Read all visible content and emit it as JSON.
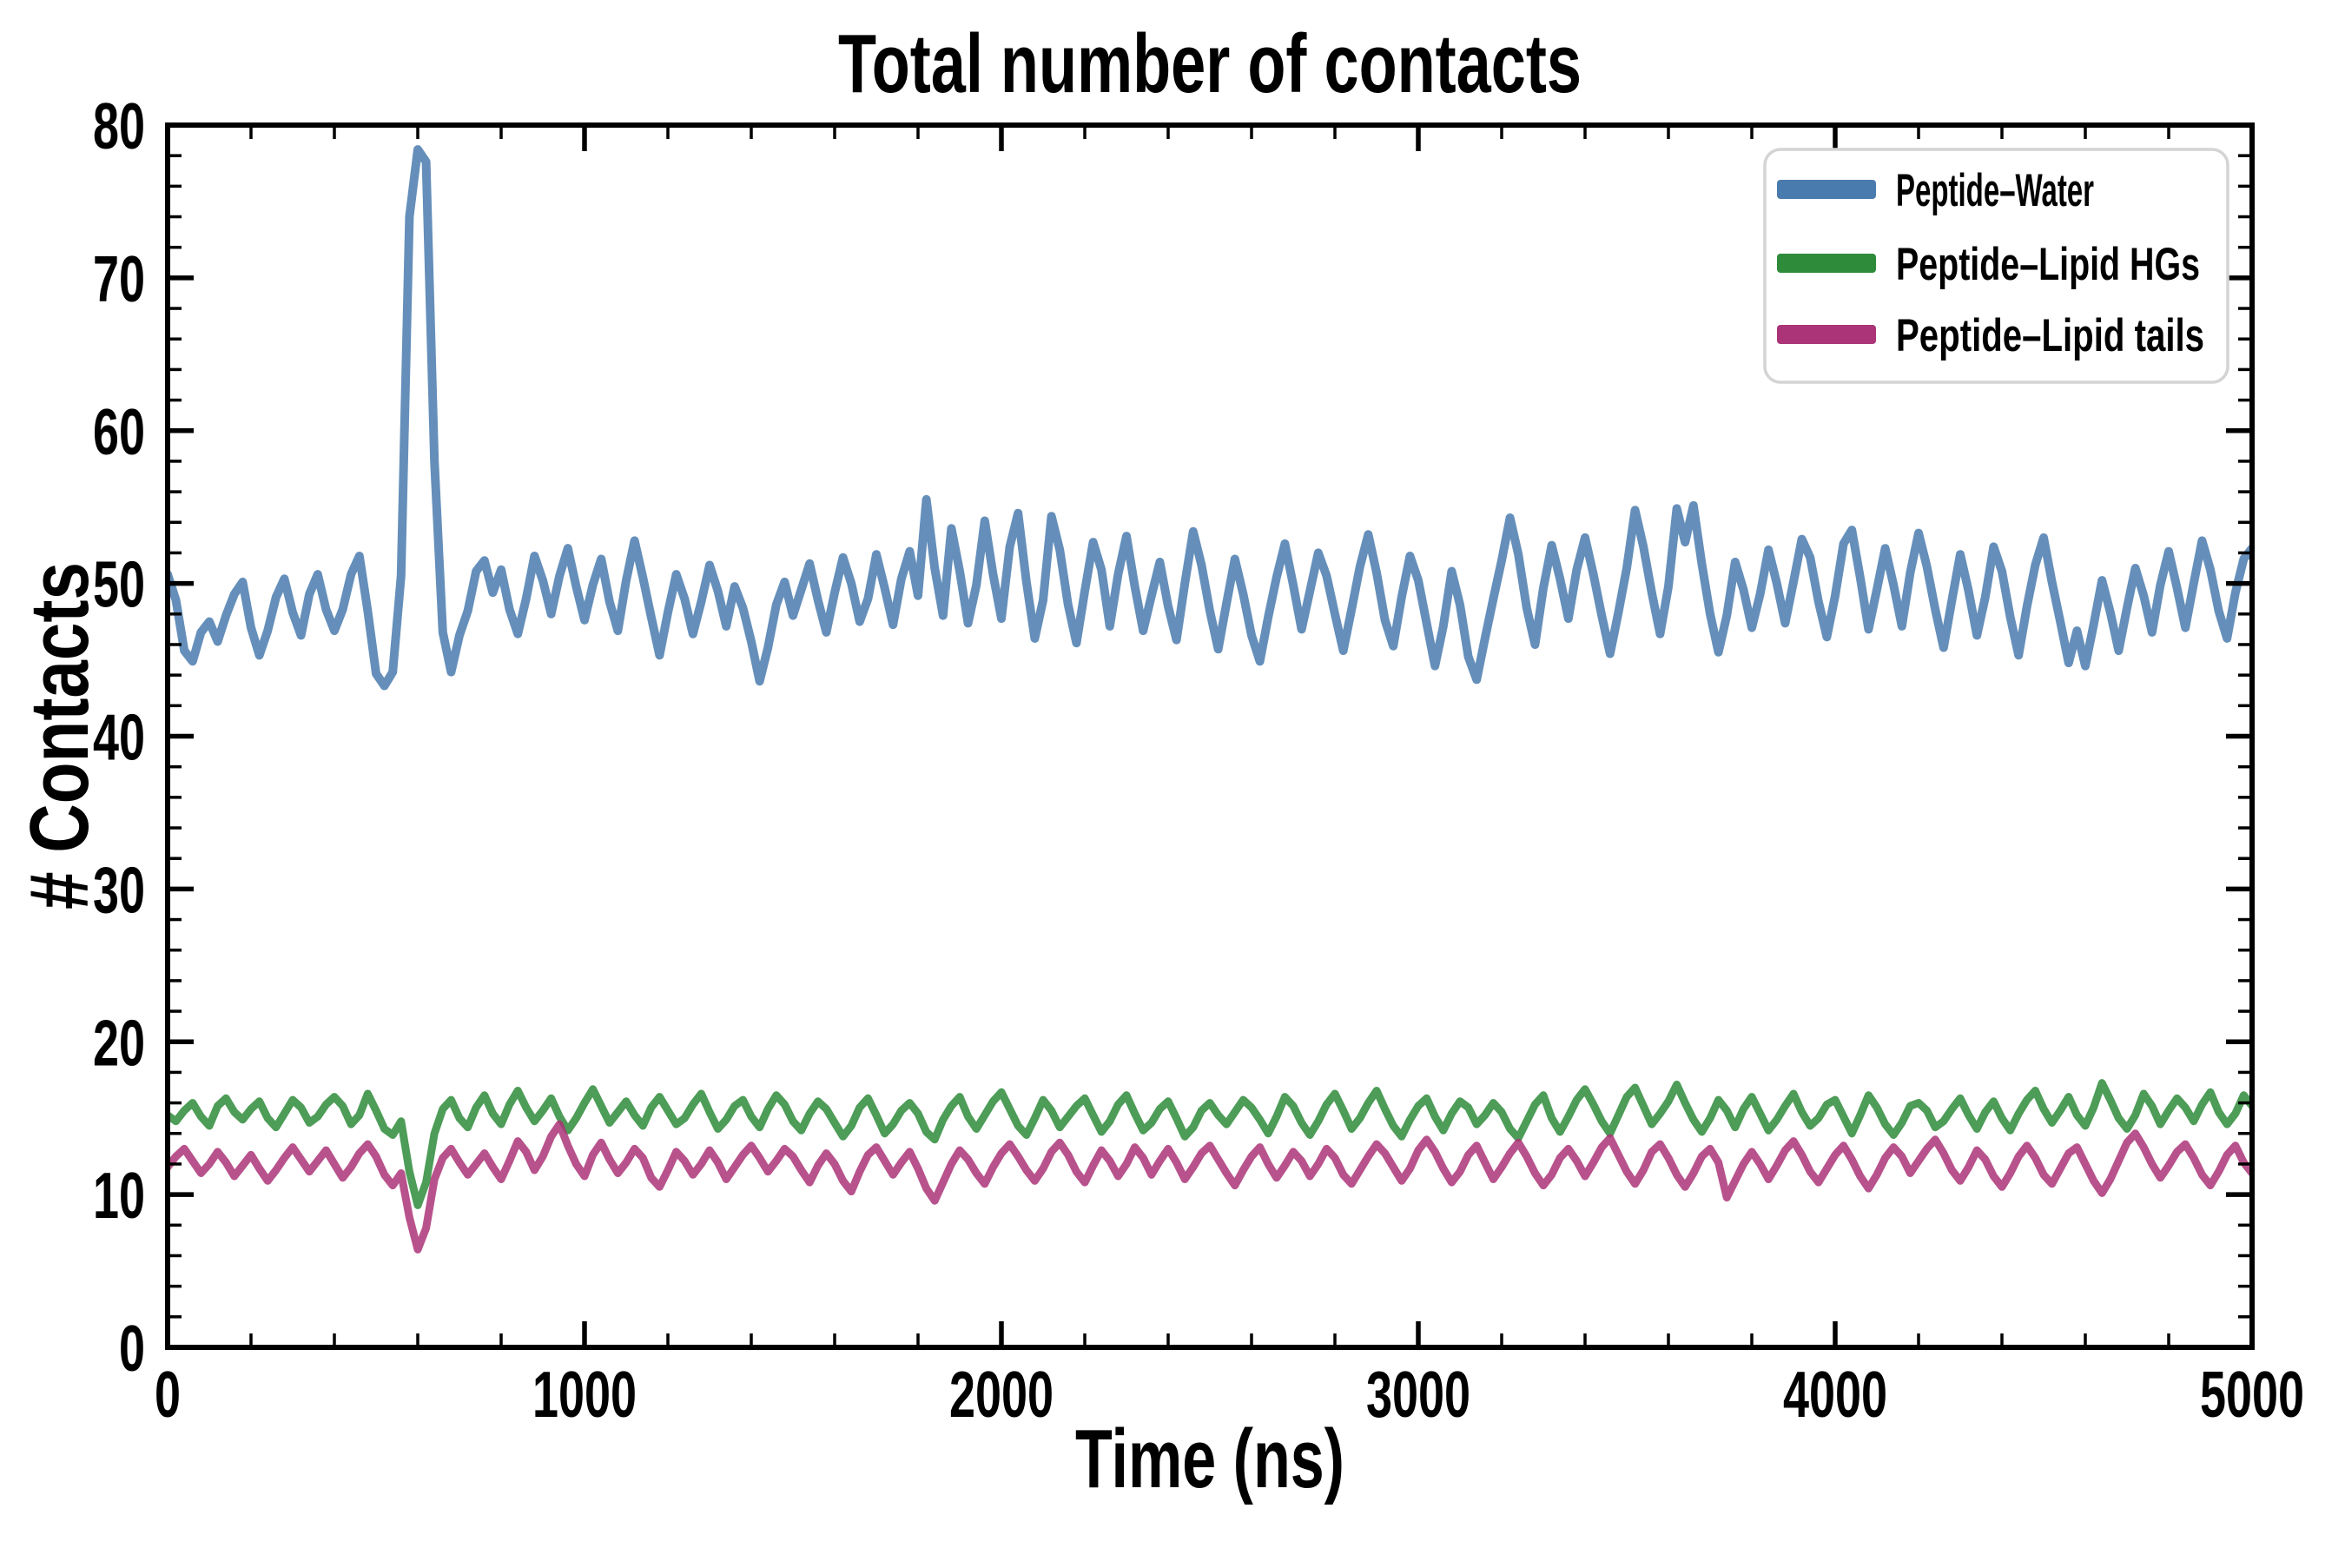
{
  "chart_data": {
    "type": "line",
    "title": "Total number of contacts",
    "xlabel": "Time (ns)",
    "ylabel": "# Contacts",
    "xlim": [
      0,
      5000
    ],
    "ylim": [
      0,
      80
    ],
    "x_major_ticks": [
      0,
      1000,
      2000,
      3000,
      4000,
      5000
    ],
    "x_minor_step": 200,
    "y_major_ticks": [
      0,
      10,
      20,
      30,
      40,
      50,
      60,
      70,
      80
    ],
    "y_minor_step": 2,
    "grid": false,
    "legend_position": "upper right",
    "background_color": "#ffffff",
    "axis_color": "#000000",
    "legend_border_color": "#d4d4d4",
    "line_alpha": 0.85,
    "x_start": 0,
    "x_step": 20,
    "series": [
      {
        "name": "Peptide–Water",
        "color": "#4a7bae",
        "linewidth": 10,
        "values": [
          50.6,
          48.9,
          45.6,
          44.9,
          46.8,
          47.5,
          46.2,
          47.9,
          49.3,
          50.1,
          47.1,
          45.3,
          46.9,
          49.1,
          50.3,
          48.1,
          46.6,
          49.3,
          50.6,
          48.3,
          46.9,
          48.3,
          50.6,
          51.8,
          48.2,
          44.1,
          43.3,
          44.2,
          50.5,
          74.0,
          78.4,
          77.6,
          58.0,
          46.8,
          44.2,
          46.6,
          48.2,
          50.8,
          51.5,
          49.4,
          50.9,
          48.3,
          46.7,
          49.0,
          51.8,
          50.2,
          48.0,
          50.5,
          52.3,
          49.8,
          47.6,
          49.9,
          51.6,
          48.8,
          46.9,
          50.2,
          52.8,
          50.4,
          47.8,
          45.3,
          48.1,
          50.6,
          49.0,
          46.7,
          48.8,
          51.2,
          49.5,
          47.2,
          49.8,
          48.4,
          46.2,
          43.6,
          45.8,
          48.6,
          50.1,
          47.9,
          49.6,
          51.3,
          48.9,
          46.8,
          49.4,
          51.7,
          50.0,
          47.5,
          49.0,
          51.9,
          49.7,
          47.3,
          50.3,
          52.1,
          49.2,
          55.5,
          51.0,
          47.9,
          53.6,
          50.8,
          47.4,
          49.9,
          54.1,
          50.6,
          47.7,
          52.4,
          54.6,
          50.1,
          46.4,
          48.9,
          54.4,
          52.2,
          48.6,
          46.1,
          49.5,
          52.7,
          50.9,
          47.2,
          50.6,
          53.1,
          49.8,
          46.9,
          49.2,
          51.4,
          48.5,
          46.3,
          50.0,
          53.4,
          51.2,
          48.2,
          45.7,
          48.7,
          51.6,
          49.3,
          46.6,
          44.9,
          47.8,
          50.4,
          52.6,
          49.9,
          47.0,
          49.5,
          52.0,
          50.5,
          48.0,
          45.6,
          48.3,
          51.1,
          53.2,
          50.7,
          47.6,
          45.9,
          49.1,
          51.8,
          50.2,
          47.4,
          44.6,
          47.2,
          50.8,
          48.6,
          45.2,
          43.7,
          46.4,
          49.0,
          51.5,
          54.3,
          51.9,
          48.4,
          46.0,
          49.7,
          52.5,
          50.3,
          47.7,
          50.9,
          53.0,
          50.6,
          47.9,
          45.4,
          48.1,
          51.0,
          54.8,
          52.4,
          49.4,
          46.7,
          49.8,
          54.9,
          52.7,
          55.1,
          51.3,
          48.0,
          45.5,
          47.9,
          51.4,
          49.6,
          47.1,
          49.3,
          52.2,
          50.0,
          47.4,
          50.1,
          52.9,
          51.7,
          48.8,
          46.5,
          49.2,
          52.6,
          53.5,
          50.4,
          47.0,
          49.6,
          52.3,
          49.9,
          47.2,
          50.7,
          53.3,
          51.1,
          48.3,
          45.8,
          48.9,
          51.9,
          49.5,
          46.6,
          49.1,
          52.4,
          50.8,
          47.8,
          45.3,
          48.5,
          51.2,
          53.0,
          50.1,
          47.5,
          44.8,
          46.9,
          44.6,
          47.3,
          50.2,
          48.1,
          45.6,
          48.4,
          51.0,
          49.2,
          46.8,
          49.9,
          52.1,
          49.7,
          47.1,
          50.0,
          52.8,
          50.9,
          48.2,
          46.4,
          49.4,
          51.6,
          52.3
        ]
      },
      {
        "name": "Peptide–Lipid HGs",
        "color": "#2e8b3a",
        "linewidth": 9,
        "values": [
          15.2,
          14.8,
          15.5,
          16.0,
          15.1,
          14.5,
          15.8,
          16.3,
          15.4,
          14.9,
          15.6,
          16.1,
          15.0,
          14.4,
          15.3,
          16.2,
          15.7,
          14.7,
          15.1,
          15.9,
          16.4,
          15.8,
          14.6,
          15.2,
          16.6,
          15.5,
          14.3,
          13.9,
          14.8,
          11.5,
          9.3,
          10.8,
          14.0,
          15.6,
          16.2,
          15.0,
          14.4,
          15.7,
          16.5,
          15.3,
          14.6,
          15.9,
          16.8,
          15.7,
          14.8,
          15.5,
          16.3,
          15.1,
          14.2,
          15.0,
          16.0,
          16.9,
          15.8,
          14.7,
          15.4,
          16.1,
          15.2,
          14.5,
          15.7,
          16.4,
          15.5,
          14.6,
          15.0,
          15.9,
          16.6,
          15.4,
          14.3,
          14.9,
          15.8,
          16.2,
          15.1,
          14.4,
          15.6,
          16.5,
          15.9,
          14.8,
          14.2,
          15.3,
          16.1,
          15.6,
          14.7,
          13.8,
          14.5,
          15.7,
          16.3,
          15.2,
          14.0,
          14.6,
          15.5,
          16.0,
          15.3,
          14.1,
          13.6,
          14.9,
          15.8,
          16.4,
          15.1,
          14.3,
          15.2,
          16.1,
          16.7,
          15.6,
          14.5,
          13.9,
          15.0,
          16.2,
          15.5,
          14.4,
          15.1,
          15.8,
          16.3,
          15.2,
          14.1,
          14.8,
          15.9,
          16.5,
          15.3,
          14.2,
          14.7,
          15.6,
          16.1,
          15.0,
          13.8,
          14.4,
          15.5,
          16.0,
          15.2,
          14.6,
          15.4,
          16.2,
          15.7,
          14.9,
          14.0,
          15.1,
          16.4,
          15.8,
          14.7,
          13.9,
          14.8,
          15.9,
          16.6,
          15.5,
          14.3,
          15.0,
          16.0,
          16.8,
          15.6,
          14.5,
          13.8,
          14.9,
          15.8,
          16.3,
          15.1,
          14.2,
          15.3,
          16.1,
          15.7,
          14.6,
          15.2,
          16.0,
          15.4,
          14.3,
          13.7,
          14.8,
          15.9,
          16.5,
          15.0,
          14.1,
          15.1,
          16.2,
          16.9,
          15.9,
          14.8,
          14.0,
          15.2,
          16.4,
          17.0,
          15.8,
          14.6,
          15.3,
          16.1,
          17.2,
          16.0,
          14.9,
          14.1,
          15.0,
          16.2,
          15.5,
          14.4,
          15.6,
          16.4,
          15.3,
          14.2,
          14.9,
          15.8,
          16.6,
          15.4,
          14.5,
          15.0,
          15.9,
          16.2,
          15.1,
          14.0,
          15.2,
          16.5,
          15.7,
          14.6,
          13.9,
          14.7,
          15.8,
          16.0,
          15.5,
          14.4,
          14.8,
          15.6,
          16.3,
          15.2,
          14.3,
          15.4,
          16.1,
          15.0,
          14.2,
          15.3,
          16.2,
          16.8,
          15.6,
          14.7,
          15.5,
          16.4,
          15.2,
          14.5,
          15.7,
          17.3,
          16.2,
          15.0,
          14.3,
          15.2,
          16.6,
          15.8,
          14.6,
          15.5,
          16.3,
          15.7,
          14.8,
          15.9,
          16.7,
          15.4,
          14.6,
          15.3,
          16.5,
          15.8
        ]
      },
      {
        "name": "Peptide–Lipid tails",
        "color": "#ab3478",
        "linewidth": 9,
        "values": [
          11.8,
          12.5,
          13.0,
          12.2,
          11.4,
          12.0,
          12.8,
          12.1,
          11.2,
          11.9,
          12.6,
          11.7,
          10.9,
          11.6,
          12.4,
          13.1,
          12.3,
          11.5,
          12.2,
          12.9,
          12.0,
          11.1,
          11.8,
          12.7,
          13.3,
          12.5,
          11.3,
          10.6,
          11.4,
          8.5,
          6.4,
          7.8,
          11.0,
          12.4,
          13.0,
          12.1,
          11.3,
          12.0,
          12.7,
          11.8,
          11.0,
          12.2,
          13.5,
          12.8,
          11.6,
          12.5,
          13.8,
          14.6,
          13.2,
          12.0,
          11.2,
          12.6,
          13.4,
          12.3,
          11.4,
          12.1,
          13.0,
          12.4,
          11.1,
          10.5,
          11.6,
          12.8,
          12.2,
          11.3,
          12.0,
          12.9,
          12.1,
          11.0,
          11.8,
          12.6,
          13.2,
          12.4,
          11.5,
          12.2,
          13.0,
          12.5,
          11.6,
          10.8,
          11.9,
          12.7,
          12.0,
          10.9,
          10.2,
          11.5,
          12.6,
          13.1,
          12.2,
          11.3,
          12.1,
          12.8,
          11.7,
          10.4,
          9.6,
          10.8,
          12.0,
          12.9,
          12.3,
          11.4,
          10.7,
          11.8,
          12.7,
          13.3,
          12.5,
          11.6,
          10.9,
          11.7,
          12.8,
          13.4,
          12.6,
          11.5,
          10.8,
          11.9,
          12.9,
          12.2,
          11.2,
          12.0,
          13.1,
          12.4,
          11.3,
          12.2,
          13.0,
          12.1,
          11.0,
          11.8,
          12.7,
          13.2,
          12.3,
          11.4,
          10.6,
          11.6,
          12.5,
          13.1,
          12.0,
          11.1,
          11.9,
          12.8,
          12.2,
          11.2,
          12.0,
          13.0,
          12.4,
          11.3,
          10.7,
          11.6,
          12.5,
          13.3,
          12.7,
          11.8,
          10.9,
          11.7,
          12.9,
          13.6,
          12.8,
          11.7,
          10.8,
          11.5,
          12.6,
          13.2,
          12.1,
          11.0,
          11.8,
          12.7,
          13.4,
          12.5,
          11.4,
          10.6,
          11.3,
          12.4,
          13.0,
          12.2,
          11.2,
          12.1,
          13.1,
          13.7,
          12.6,
          11.5,
          10.7,
          11.6,
          12.8,
          13.3,
          12.4,
          11.3,
          10.5,
          11.4,
          12.5,
          13.0,
          12.1,
          9.8,
          10.9,
          12.0,
          12.8,
          12.0,
          11.0,
          11.9,
          12.9,
          13.5,
          12.6,
          11.5,
          10.8,
          11.7,
          12.6,
          13.2,
          12.3,
          11.2,
          10.4,
          11.3,
          12.4,
          13.1,
          12.5,
          11.4,
          12.2,
          13.0,
          13.6,
          12.7,
          11.6,
          10.9,
          11.8,
          12.9,
          12.3,
          11.2,
          10.5,
          11.4,
          12.5,
          13.2,
          12.4,
          11.3,
          10.7,
          11.7,
          12.7,
          13.1,
          12.0,
          10.9,
          10.1,
          11.0,
          12.2,
          13.4,
          14.0,
          13.1,
          12.0,
          11.1,
          11.9,
          12.8,
          13.3,
          12.4,
          11.3,
          10.6,
          11.5,
          12.6,
          13.2,
          12.1,
          11.4
        ]
      }
    ]
  }
}
